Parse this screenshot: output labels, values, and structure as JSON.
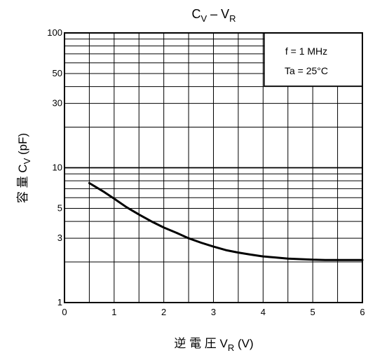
{
  "chart_data": {
    "type": "line",
    "title": "C",
    "title_sub": "V",
    "title_dash": " – ",
    "title_v": "V",
    "title_v_sub": "R",
    "xlabel": "逆 電 圧 V",
    "xlabel_sub": "R",
    "xlabel_unit": " (V)",
    "ylabel": "容 量 C",
    "ylabel_sub": "V",
    "ylabel_unit": " (pF)",
    "xlim": [
      0,
      6
    ],
    "ylim": [
      1,
      100
    ],
    "yscale": "log",
    "grid": true,
    "x_ticks": [
      0,
      1,
      2,
      3,
      4,
      5,
      6
    ],
    "x_tick_labels": [
      "0",
      "1",
      "2",
      "3",
      "4",
      "5",
      "6"
    ],
    "y_tick_values": [
      1,
      3,
      5,
      10,
      30,
      50,
      100
    ],
    "y_tick_labels": [
      "1",
      "3",
      "5",
      "10",
      "30",
      "50",
      "100"
    ],
    "conditions": [
      "f = 1 MHz",
      "Ta = 25°C"
    ],
    "legend_position": "top-right",
    "series": [
      {
        "x": [
          0.5,
          0.8,
          1.0,
          1.25,
          1.5,
          1.75,
          2.0,
          2.25,
          2.5,
          2.75,
          3.0,
          3.25,
          3.5,
          3.75,
          4.0,
          4.25,
          4.5,
          4.75,
          5.0,
          5.25,
          5.5,
          5.75,
          6.0
        ],
        "y": [
          7.7,
          6.6,
          5.9,
          5.1,
          4.5,
          4.0,
          3.6,
          3.3,
          3.0,
          2.78,
          2.6,
          2.45,
          2.35,
          2.27,
          2.2,
          2.16,
          2.12,
          2.1,
          2.08,
          2.07,
          2.07,
          2.07,
          2.07
        ]
      }
    ]
  }
}
